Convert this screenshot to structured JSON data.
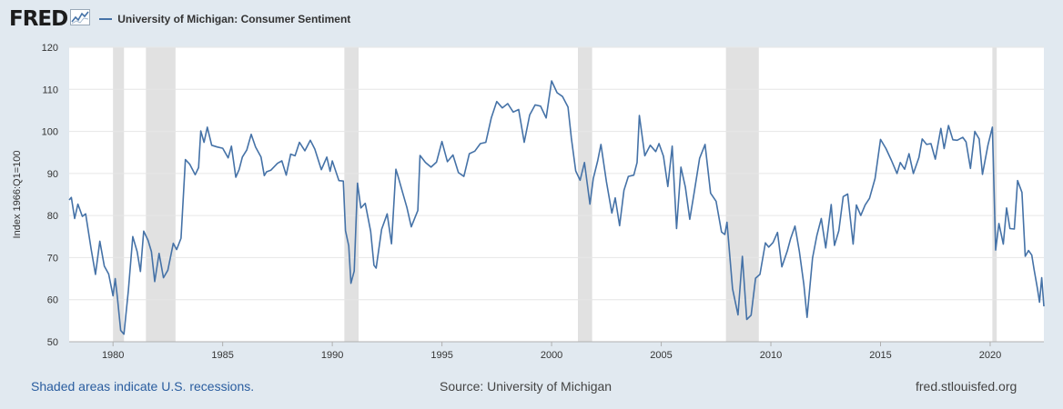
{
  "header": {
    "logo": "FRED",
    "legend_label": "University of Michigan: Consumer Sentiment"
  },
  "footer": {
    "recessions_note": "Shaded areas indicate U.S. recessions.",
    "source": "Source: University of Michigan",
    "site": "fred.stlouisfed.org"
  },
  "colors": {
    "series": "#4572a7",
    "recession": "#e1e1e1",
    "background": "#e1e9f0"
  },
  "chart_data": {
    "type": "line",
    "ylabel": "Index 1966:Q1=100",
    "ylim": [
      50,
      120
    ],
    "xlim": [
      1978.0,
      2022.45
    ],
    "y_ticks": [
      50,
      60,
      70,
      80,
      90,
      100,
      110,
      120
    ],
    "x_ticks": [
      1980,
      1985,
      1990,
      1995,
      2000,
      2005,
      2010,
      2015,
      2020
    ],
    "grid": "horizontal",
    "recessions": [
      [
        1980.0,
        1980.5
      ],
      [
        1981.5,
        1982.85
      ],
      [
        1990.55,
        1991.2
      ],
      [
        2001.2,
        2001.85
      ],
      [
        2007.95,
        2009.45
      ],
      [
        2020.1,
        2020.3
      ]
    ],
    "series": [
      {
        "name": "University of Michigan: Consumer Sentiment",
        "points": [
          [
            1978.0,
            83.7
          ],
          [
            1978.1,
            84.3
          ],
          [
            1978.25,
            79.3
          ],
          [
            1978.4,
            82.7
          ],
          [
            1978.6,
            79.8
          ],
          [
            1978.75,
            80.4
          ],
          [
            1979.0,
            72.1
          ],
          [
            1979.2,
            66.0
          ],
          [
            1979.4,
            73.9
          ],
          [
            1979.6,
            68.0
          ],
          [
            1979.8,
            66.1
          ],
          [
            1980.0,
            60.9
          ],
          [
            1980.1,
            65.0
          ],
          [
            1980.2,
            60.5
          ],
          [
            1980.35,
            52.7
          ],
          [
            1980.5,
            51.8
          ],
          [
            1980.7,
            62.3
          ],
          [
            1980.9,
            75.0
          ],
          [
            1981.1,
            71.4
          ],
          [
            1981.25,
            66.7
          ],
          [
            1981.4,
            76.3
          ],
          [
            1981.6,
            74.1
          ],
          [
            1981.75,
            71.4
          ],
          [
            1981.9,
            64.3
          ],
          [
            1982.1,
            71.0
          ],
          [
            1982.3,
            65.2
          ],
          [
            1982.5,
            67.0
          ],
          [
            1982.75,
            73.4
          ],
          [
            1982.9,
            71.9
          ],
          [
            1983.1,
            74.6
          ],
          [
            1983.3,
            93.3
          ],
          [
            1983.5,
            92.2
          ],
          [
            1983.75,
            89.7
          ],
          [
            1983.9,
            91.4
          ],
          [
            1984.0,
            100.1
          ],
          [
            1984.15,
            97.4
          ],
          [
            1984.3,
            101.0
          ],
          [
            1984.5,
            96.7
          ],
          [
            1984.75,
            96.3
          ],
          [
            1985.0,
            96.0
          ],
          [
            1985.25,
            93.7
          ],
          [
            1985.4,
            96.5
          ],
          [
            1985.6,
            89.1
          ],
          [
            1985.75,
            90.9
          ],
          [
            1985.9,
            93.9
          ],
          [
            1986.1,
            95.6
          ],
          [
            1986.3,
            99.3
          ],
          [
            1986.5,
            96.3
          ],
          [
            1986.75,
            93.9
          ],
          [
            1986.9,
            89.5
          ],
          [
            1987.0,
            90.4
          ],
          [
            1987.2,
            90.8
          ],
          [
            1987.5,
            92.4
          ],
          [
            1987.7,
            93.0
          ],
          [
            1987.9,
            89.6
          ],
          [
            1988.1,
            94.6
          ],
          [
            1988.3,
            94.2
          ],
          [
            1988.5,
            97.4
          ],
          [
            1988.75,
            95.4
          ],
          [
            1989.0,
            97.9
          ],
          [
            1989.2,
            95.8
          ],
          [
            1989.5,
            90.9
          ],
          [
            1989.75,
            93.9
          ],
          [
            1989.9,
            90.5
          ],
          [
            1990.0,
            93.0
          ],
          [
            1990.3,
            88.3
          ],
          [
            1990.5,
            88.2
          ],
          [
            1990.6,
            76.4
          ],
          [
            1990.75,
            72.8
          ],
          [
            1990.85,
            63.9
          ],
          [
            1991.0,
            66.8
          ],
          [
            1991.15,
            87.7
          ],
          [
            1991.3,
            81.8
          ],
          [
            1991.5,
            82.9
          ],
          [
            1991.75,
            76.2
          ],
          [
            1991.9,
            68.2
          ],
          [
            1992.0,
            67.5
          ],
          [
            1992.25,
            76.7
          ],
          [
            1992.5,
            80.4
          ],
          [
            1992.7,
            73.3
          ],
          [
            1992.9,
            91.0
          ],
          [
            1993.0,
            89.3
          ],
          [
            1993.2,
            85.6
          ],
          [
            1993.4,
            81.9
          ],
          [
            1993.6,
            77.3
          ],
          [
            1993.9,
            81.2
          ],
          [
            1994.0,
            94.3
          ],
          [
            1994.25,
            92.6
          ],
          [
            1994.5,
            91.5
          ],
          [
            1994.75,
            92.7
          ],
          [
            1995.0,
            97.6
          ],
          [
            1995.25,
            92.8
          ],
          [
            1995.5,
            94.4
          ],
          [
            1995.75,
            90.2
          ],
          [
            1996.0,
            89.3
          ],
          [
            1996.25,
            94.7
          ],
          [
            1996.5,
            95.3
          ],
          [
            1996.75,
            97.1
          ],
          [
            1997.0,
            97.4
          ],
          [
            1997.25,
            103.2
          ],
          [
            1997.5,
            107.1
          ],
          [
            1997.75,
            105.6
          ],
          [
            1998.0,
            106.6
          ],
          [
            1998.25,
            104.6
          ],
          [
            1998.5,
            105.2
          ],
          [
            1998.75,
            97.4
          ],
          [
            1999.0,
            103.9
          ],
          [
            1999.25,
            106.3
          ],
          [
            1999.5,
            106.0
          ],
          [
            1999.75,
            103.2
          ],
          [
            2000.0,
            112.0
          ],
          [
            2000.25,
            109.2
          ],
          [
            2000.5,
            108.3
          ],
          [
            2000.75,
            105.8
          ],
          [
            2000.9,
            98.4
          ],
          [
            2001.1,
            90.6
          ],
          [
            2001.3,
            88.4
          ],
          [
            2001.5,
            92.6
          ],
          [
            2001.75,
            82.7
          ],
          [
            2001.9,
            88.8
          ],
          [
            2002.1,
            93.0
          ],
          [
            2002.25,
            96.9
          ],
          [
            2002.5,
            88.1
          ],
          [
            2002.75,
            80.6
          ],
          [
            2002.9,
            84.2
          ],
          [
            2003.1,
            77.6
          ],
          [
            2003.3,
            86.0
          ],
          [
            2003.5,
            89.3
          ],
          [
            2003.75,
            89.6
          ],
          [
            2003.9,
            92.6
          ],
          [
            2004.0,
            103.8
          ],
          [
            2004.25,
            94.2
          ],
          [
            2004.5,
            96.7
          ],
          [
            2004.75,
            95.2
          ],
          [
            2004.9,
            97.1
          ],
          [
            2005.1,
            94.1
          ],
          [
            2005.3,
            86.9
          ],
          [
            2005.5,
            96.5
          ],
          [
            2005.7,
            76.9
          ],
          [
            2005.9,
            91.5
          ],
          [
            2006.1,
            86.7
          ],
          [
            2006.3,
            79.1
          ],
          [
            2006.5,
            85.4
          ],
          [
            2006.75,
            93.6
          ],
          [
            2007.0,
            96.9
          ],
          [
            2007.25,
            85.3
          ],
          [
            2007.5,
            83.4
          ],
          [
            2007.75,
            76.1
          ],
          [
            2007.9,
            75.5
          ],
          [
            2008.0,
            78.4
          ],
          [
            2008.25,
            62.6
          ],
          [
            2008.5,
            56.4
          ],
          [
            2008.7,
            70.3
          ],
          [
            2008.9,
            55.3
          ],
          [
            2009.1,
            56.3
          ],
          [
            2009.3,
            65.1
          ],
          [
            2009.5,
            66.0
          ],
          [
            2009.75,
            73.5
          ],
          [
            2009.9,
            72.5
          ],
          [
            2010.1,
            73.6
          ],
          [
            2010.3,
            76.0
          ],
          [
            2010.5,
            67.8
          ],
          [
            2010.75,
            71.6
          ],
          [
            2010.9,
            74.5
          ],
          [
            2011.1,
            77.5
          ],
          [
            2011.3,
            71.5
          ],
          [
            2011.5,
            63.7
          ],
          [
            2011.65,
            55.8
          ],
          [
            2011.9,
            69.9
          ],
          [
            2012.1,
            75.3
          ],
          [
            2012.3,
            79.3
          ],
          [
            2012.5,
            72.3
          ],
          [
            2012.75,
            82.6
          ],
          [
            2012.9,
            72.9
          ],
          [
            2013.1,
            76.4
          ],
          [
            2013.3,
            84.5
          ],
          [
            2013.5,
            85.1
          ],
          [
            2013.75,
            73.2
          ],
          [
            2013.9,
            82.5
          ],
          [
            2014.1,
            80.0
          ],
          [
            2014.3,
            82.5
          ],
          [
            2014.5,
            84.1
          ],
          [
            2014.75,
            88.8
          ],
          [
            2015.0,
            98.1
          ],
          [
            2015.25,
            95.9
          ],
          [
            2015.5,
            93.1
          ],
          [
            2015.75,
            90.0
          ],
          [
            2015.9,
            92.6
          ],
          [
            2016.1,
            91.0
          ],
          [
            2016.3,
            94.7
          ],
          [
            2016.5,
            90.0
          ],
          [
            2016.75,
            93.8
          ],
          [
            2016.9,
            98.2
          ],
          [
            2017.1,
            96.9
          ],
          [
            2017.3,
            97.1
          ],
          [
            2017.5,
            93.4
          ],
          [
            2017.75,
            100.7
          ],
          [
            2017.9,
            95.9
          ],
          [
            2018.1,
            101.4
          ],
          [
            2018.3,
            98.0
          ],
          [
            2018.5,
            97.9
          ],
          [
            2018.75,
            98.6
          ],
          [
            2018.9,
            97.5
          ],
          [
            2019.1,
            91.2
          ],
          [
            2019.3,
            100.0
          ],
          [
            2019.5,
            98.2
          ],
          [
            2019.65,
            89.8
          ],
          [
            2019.9,
            96.8
          ],
          [
            2020.1,
            101.0
          ],
          [
            2020.25,
            71.8
          ],
          [
            2020.4,
            78.1
          ],
          [
            2020.6,
            73.2
          ],
          [
            2020.75,
            81.8
          ],
          [
            2020.9,
            76.9
          ],
          [
            2021.1,
            76.8
          ],
          [
            2021.25,
            88.3
          ],
          [
            2021.45,
            85.5
          ],
          [
            2021.6,
            70.3
          ],
          [
            2021.75,
            71.7
          ],
          [
            2021.9,
            70.6
          ],
          [
            2022.0,
            67.2
          ],
          [
            2022.15,
            62.8
          ],
          [
            2022.25,
            59.4
          ],
          [
            2022.35,
            65.2
          ],
          [
            2022.45,
            58.4
          ]
        ]
      }
    ]
  }
}
